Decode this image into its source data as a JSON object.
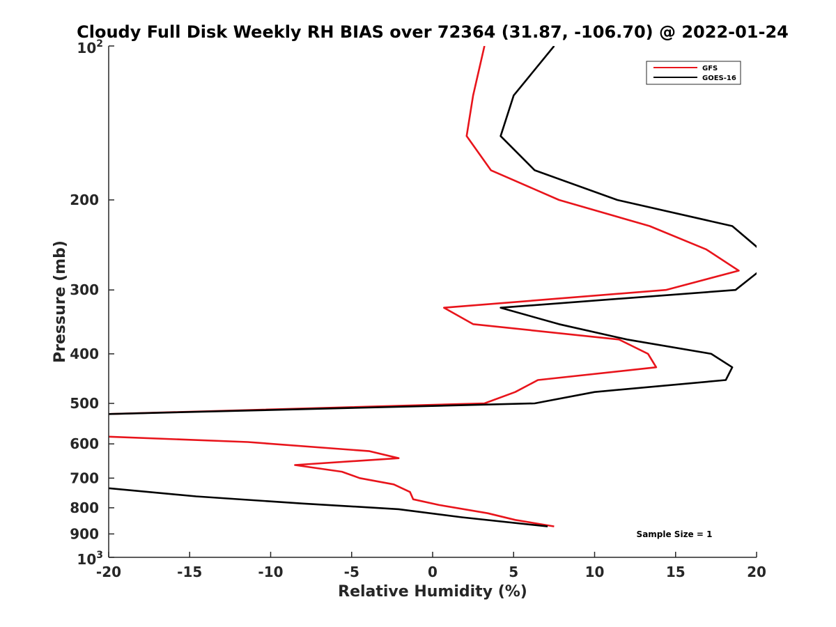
{
  "chart_data": {
    "type": "line",
    "title": "Cloudy Full Disk Weekly RH BIAS over 72364 (31.87, -106.70) @ 2022-01-24",
    "xlabel": "Relative Humidity (%)",
    "ylabel": "Pressure (mb)",
    "xlim": [
      -20,
      20
    ],
    "ylim": [
      100,
      1000
    ],
    "y_scale": "log",
    "y_reversed": true,
    "x_ticks": [
      "-20",
      "-15",
      "-10",
      "-5",
      "0",
      "5",
      "10",
      "15",
      "20"
    ],
    "y_ticks": [
      {
        "value": 100,
        "base": "10",
        "exp": "2"
      },
      {
        "value": 200,
        "label": "200"
      },
      {
        "value": 300,
        "label": "300"
      },
      {
        "value": 400,
        "label": "400"
      },
      {
        "value": 500,
        "label": "500"
      },
      {
        "value": 600,
        "label": "600"
      },
      {
        "value": 700,
        "label": "700"
      },
      {
        "value": 800,
        "label": "800"
      },
      {
        "value": 900,
        "label": "900"
      },
      {
        "value": 1000,
        "base": "10",
        "exp": "3"
      }
    ],
    "grid": false,
    "legend_position": "top-right",
    "annotation": "Sample Size = 1",
    "series": [
      {
        "name": "GFS",
        "color": "#e8141b",
        "points": [
          [
            3.2,
            100
          ],
          [
            2.5,
            125
          ],
          [
            2.1,
            150
          ],
          [
            3.6,
            175
          ],
          [
            7.8,
            200
          ],
          [
            13.4,
            225
          ],
          [
            16.9,
            250
          ],
          [
            18.9,
            275
          ],
          [
            14.4,
            300
          ],
          [
            0.7,
            325
          ],
          [
            2.5,
            350
          ],
          [
            11.5,
            375
          ],
          [
            13.3,
            400
          ],
          [
            13.8,
            425
          ],
          [
            6.5,
            450
          ],
          [
            5.1,
            475
          ],
          [
            3.2,
            500
          ],
          [
            -20.5,
            525
          ],
          null,
          [
            -20.5,
            580
          ],
          [
            -11.4,
            595
          ],
          [
            -3.9,
            620
          ],
          [
            -2.1,
            640
          ],
          [
            -8.5,
            660
          ],
          [
            -5.6,
            680
          ],
          [
            -4.5,
            700
          ],
          [
            -2.4,
            720
          ],
          [
            -1.4,
            745
          ],
          [
            -1.2,
            770
          ],
          [
            0.4,
            790
          ],
          [
            3.4,
            820
          ],
          [
            5.1,
            845
          ],
          [
            7.5,
            870
          ]
        ]
      },
      {
        "name": "GOES-16",
        "color": "#000000",
        "points": [
          [
            7.5,
            100
          ],
          [
            5.0,
            125
          ],
          [
            4.2,
            150
          ],
          [
            6.3,
            175
          ],
          [
            11.4,
            200
          ],
          [
            18.5,
            225
          ],
          [
            20.2,
            250
          ],
          [
            20.2,
            275
          ],
          [
            18.7,
            300
          ],
          [
            4.2,
            325
          ],
          [
            7.8,
            350
          ],
          [
            12.0,
            375
          ],
          [
            17.2,
            400
          ],
          [
            18.5,
            425
          ],
          [
            18.1,
            450
          ],
          [
            10.0,
            475
          ],
          [
            6.3,
            500
          ],
          [
            -20.5,
            525
          ],
          null,
          [
            -20.5,
            730
          ],
          [
            -14.6,
            760
          ],
          [
            -8.0,
            785
          ],
          [
            -2.1,
            805
          ],
          [
            1.8,
            835
          ],
          [
            7.1,
            870
          ]
        ]
      }
    ]
  }
}
